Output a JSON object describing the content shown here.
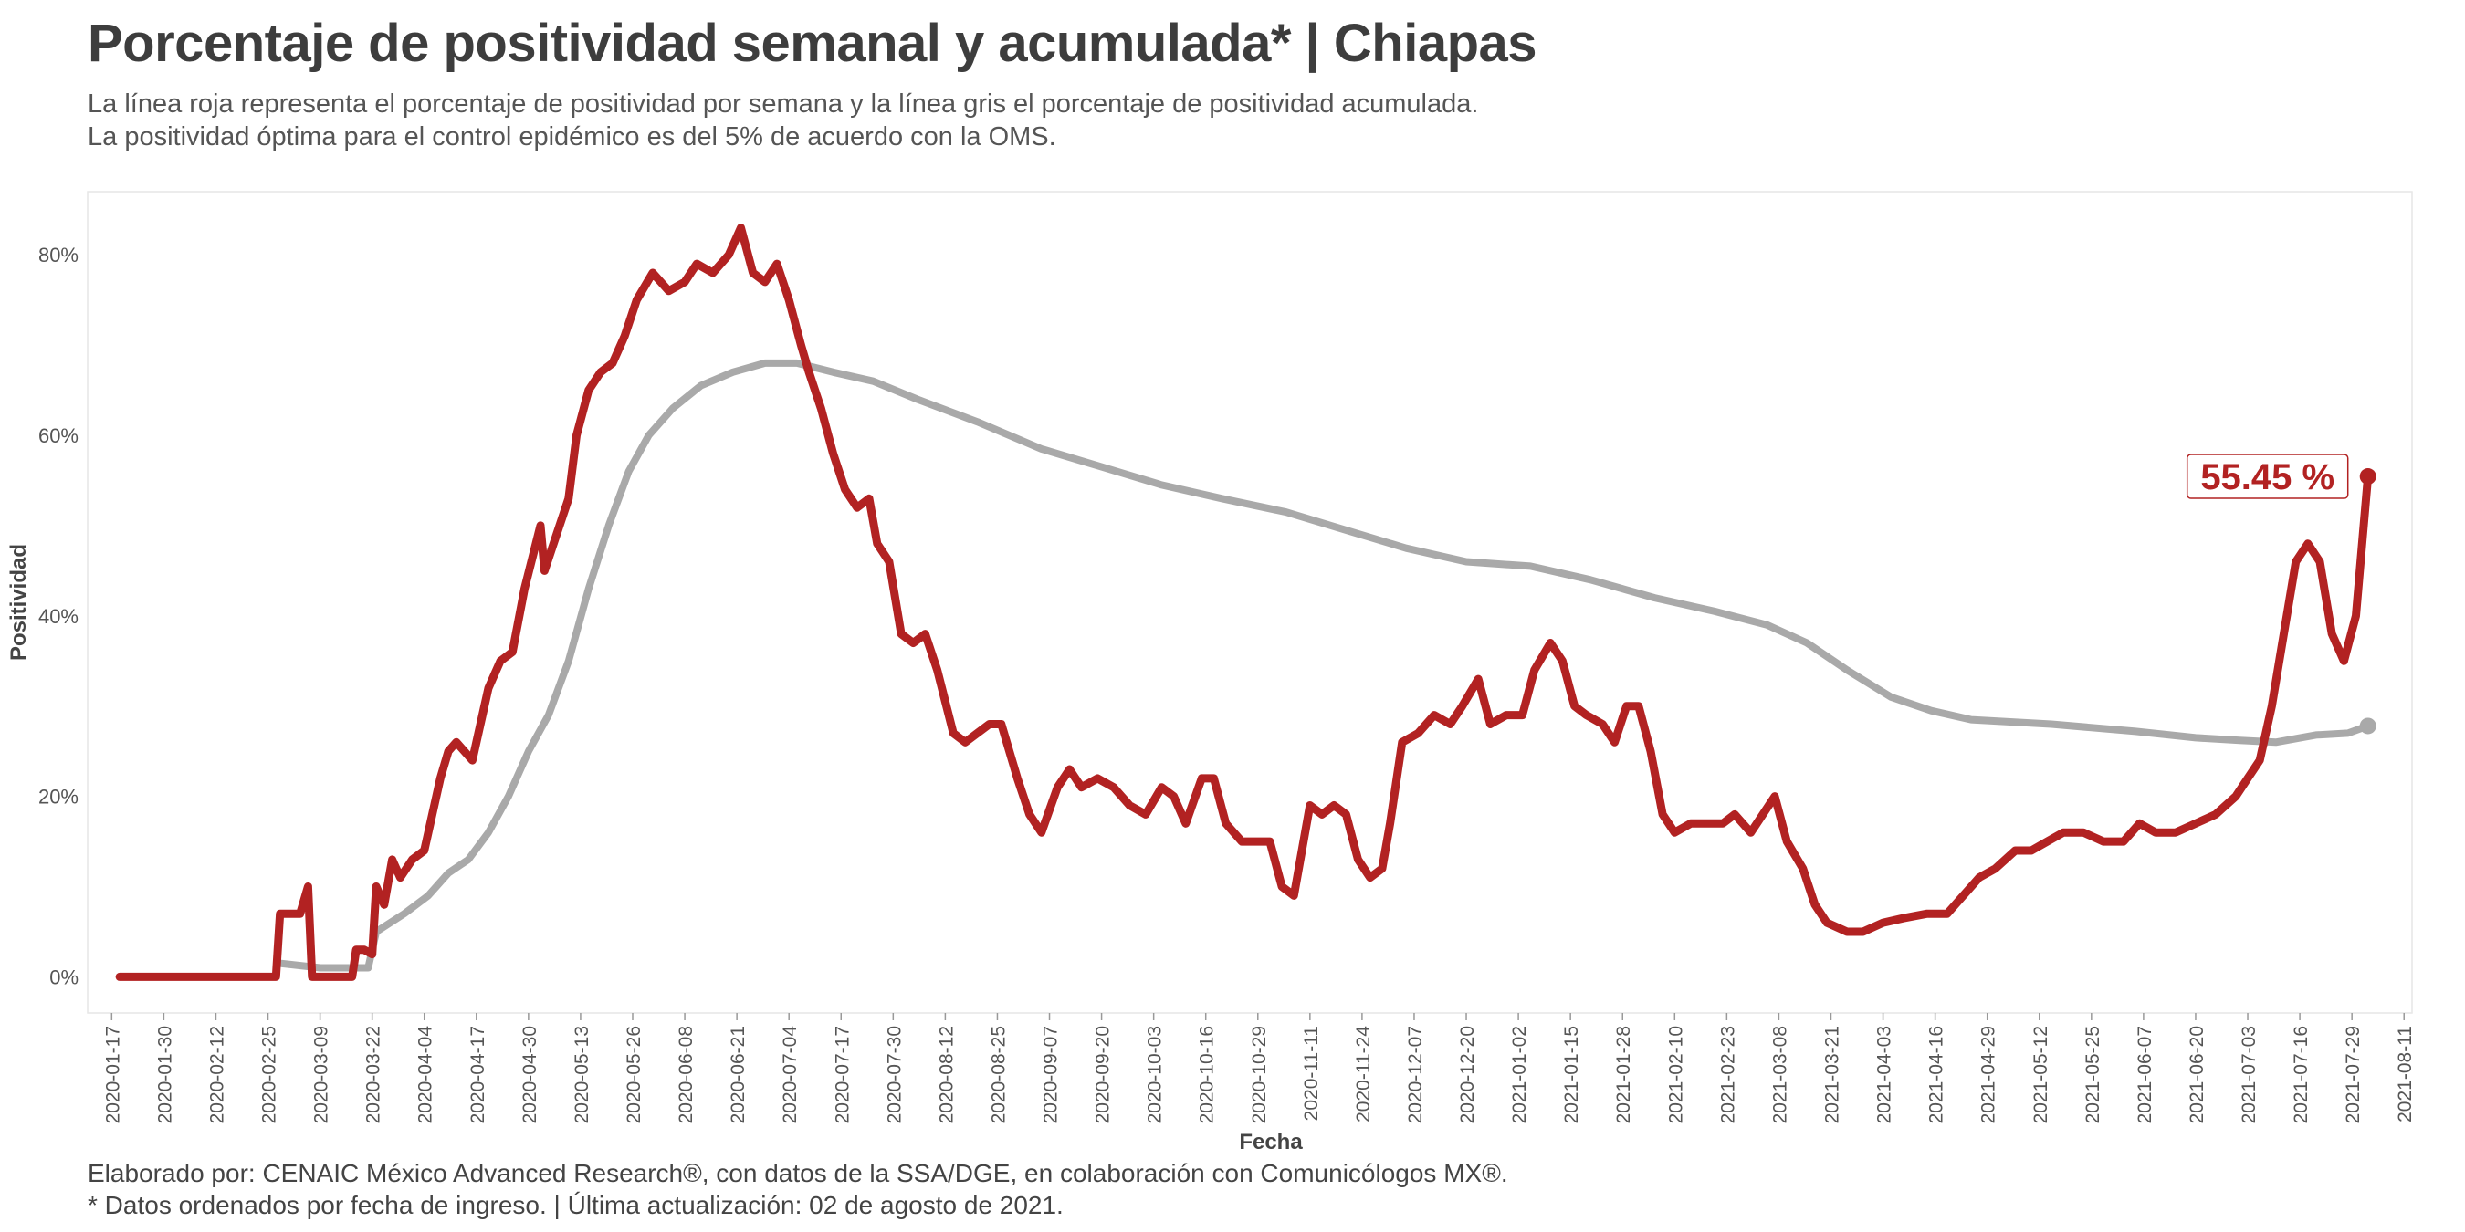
{
  "header": {
    "title": "Porcentaje de positividad semanal y acumulada* | Chiapas",
    "subtitle_line1": "La línea roja representa el porcentaje de positividad por semana y la línea gris el porcentaje de positividad acumulada.",
    "subtitle_line2": "La positividad óptima para el control epidémico es del 5% de acuerdo con la OMS."
  },
  "caption": {
    "line1": "Elaborado por: CENAIC México Advanced Research®, con datos de la SSA/DGE, en colaboración con Comunicólogos MX®.",
    "line2": "* Datos ordenados por fecha de ingreso. | Última actualización: 02 de agosto de 2021."
  },
  "chart_data": {
    "type": "line",
    "xlabel": "Fecha",
    "ylabel": "Positividad",
    "x_axis_type": "date",
    "xlim": [
      "2020-01-11",
      "2021-08-13"
    ],
    "ylim": [
      -4,
      87
    ],
    "y_ticks": [
      0,
      20,
      40,
      60,
      80
    ],
    "y_tick_labels": [
      "0%",
      "20%",
      "40%",
      "60%",
      "80%"
    ],
    "x_ticks": [
      "2020-01-17",
      "2020-01-30",
      "2020-02-12",
      "2020-02-25",
      "2020-03-09",
      "2020-03-22",
      "2020-04-04",
      "2020-04-17",
      "2020-04-30",
      "2020-05-13",
      "2020-05-26",
      "2020-06-08",
      "2020-06-21",
      "2020-07-04",
      "2020-07-17",
      "2020-07-30",
      "2020-08-12",
      "2020-08-25",
      "2020-09-07",
      "2020-09-20",
      "2020-10-03",
      "2020-10-16",
      "2020-10-29",
      "2020-11-11",
      "2020-11-24",
      "2020-12-07",
      "2020-12-20",
      "2021-01-02",
      "2021-01-15",
      "2021-01-28",
      "2021-02-10",
      "2021-02-23",
      "2021-03-08",
      "2021-03-21",
      "2021-04-03",
      "2021-04-16",
      "2021-04-29",
      "2021-05-12",
      "2021-05-25",
      "2021-06-07",
      "2021-06-20",
      "2021-07-03",
      "2021-07-16",
      "2021-07-29",
      "2021-08-11"
    ],
    "grid": false,
    "annotation": {
      "text": "55.45 %",
      "x": "2021-08-02",
      "y": 55.45,
      "color": "#b22222"
    },
    "series": [
      {
        "color": "#b22222",
        "points": [
          [
            "2020-01-19",
            0
          ],
          [
            "2020-02-27",
            0
          ],
          [
            "2020-02-28",
            7
          ],
          [
            "2020-03-04",
            7
          ],
          [
            "2020-03-06",
            10
          ],
          [
            "2020-03-07",
            0
          ],
          [
            "2020-03-17",
            0
          ],
          [
            "2020-03-18",
            3
          ],
          [
            "2020-03-20",
            3
          ],
          [
            "2020-03-22",
            2.5
          ],
          [
            "2020-03-23",
            10
          ],
          [
            "2020-03-25",
            8
          ],
          [
            "2020-03-27",
            13
          ],
          [
            "2020-03-29",
            11
          ],
          [
            "2020-04-01",
            13
          ],
          [
            "2020-04-04",
            14
          ],
          [
            "2020-04-08",
            22
          ],
          [
            "2020-04-10",
            25
          ],
          [
            "2020-04-12",
            26
          ],
          [
            "2020-04-16",
            24
          ],
          [
            "2020-04-18",
            28
          ],
          [
            "2020-04-20",
            32
          ],
          [
            "2020-04-23",
            35
          ],
          [
            "2020-04-26",
            36
          ],
          [
            "2020-04-29",
            43
          ],
          [
            "2020-05-03",
            50
          ],
          [
            "2020-05-04",
            45
          ],
          [
            "2020-05-07",
            49
          ],
          [
            "2020-05-10",
            53
          ],
          [
            "2020-05-12",
            60
          ],
          [
            "2020-05-15",
            65
          ],
          [
            "2020-05-18",
            67
          ],
          [
            "2020-05-21",
            68
          ],
          [
            "2020-05-24",
            71
          ],
          [
            "2020-05-27",
            75
          ],
          [
            "2020-05-31",
            78
          ],
          [
            "2020-06-04",
            76
          ],
          [
            "2020-06-08",
            77
          ],
          [
            "2020-06-11",
            79
          ],
          [
            "2020-06-15",
            78
          ],
          [
            "2020-06-19",
            80
          ],
          [
            "2020-06-22",
            83
          ],
          [
            "2020-06-25",
            78
          ],
          [
            "2020-06-28",
            77
          ],
          [
            "2020-07-01",
            79
          ],
          [
            "2020-07-04",
            75
          ],
          [
            "2020-07-07",
            70
          ],
          [
            "2020-07-09",
            67
          ],
          [
            "2020-07-12",
            63
          ],
          [
            "2020-07-15",
            58
          ],
          [
            "2020-07-18",
            54
          ],
          [
            "2020-07-21",
            52
          ],
          [
            "2020-07-24",
            53
          ],
          [
            "2020-07-26",
            48
          ],
          [
            "2020-07-29",
            46
          ],
          [
            "2020-08-01",
            38
          ],
          [
            "2020-08-04",
            37
          ],
          [
            "2020-08-07",
            38
          ],
          [
            "2020-08-10",
            34
          ],
          [
            "2020-08-14",
            27
          ],
          [
            "2020-08-17",
            26
          ],
          [
            "2020-08-20",
            27
          ],
          [
            "2020-08-23",
            28
          ],
          [
            "2020-08-26",
            28
          ],
          [
            "2020-08-30",
            22
          ],
          [
            "2020-09-02",
            18
          ],
          [
            "2020-09-05",
            16
          ],
          [
            "2020-09-09",
            21
          ],
          [
            "2020-09-12",
            23
          ],
          [
            "2020-09-15",
            21
          ],
          [
            "2020-09-19",
            22
          ],
          [
            "2020-09-23",
            21
          ],
          [
            "2020-09-27",
            19
          ],
          [
            "2020-10-01",
            18
          ],
          [
            "2020-10-05",
            21
          ],
          [
            "2020-10-08",
            20
          ],
          [
            "2020-10-11",
            17
          ],
          [
            "2020-10-15",
            22
          ],
          [
            "2020-10-18",
            22
          ],
          [
            "2020-10-21",
            17
          ],
          [
            "2020-10-25",
            15
          ],
          [
            "2020-10-29",
            15
          ],
          [
            "2020-11-01",
            15
          ],
          [
            "2020-11-04",
            10
          ],
          [
            "2020-11-07",
            9
          ],
          [
            "2020-11-11",
            19
          ],
          [
            "2020-11-14",
            18
          ],
          [
            "2020-11-17",
            19
          ],
          [
            "2020-11-20",
            18
          ],
          [
            "2020-11-23",
            13
          ],
          [
            "2020-11-26",
            11
          ],
          [
            "2020-11-29",
            12
          ],
          [
            "2020-12-01",
            17
          ],
          [
            "2020-12-04",
            26
          ],
          [
            "2020-12-08",
            27
          ],
          [
            "2020-12-12",
            29
          ],
          [
            "2020-12-16",
            28
          ],
          [
            "2020-12-19",
            30
          ],
          [
            "2020-12-23",
            33
          ],
          [
            "2020-12-26",
            28
          ],
          [
            "2020-12-30",
            29
          ],
          [
            "2021-01-03",
            29
          ],
          [
            "2021-01-06",
            34
          ],
          [
            "2021-01-10",
            37
          ],
          [
            "2021-01-13",
            35
          ],
          [
            "2021-01-16",
            30
          ],
          [
            "2021-01-19",
            29
          ],
          [
            "2021-01-23",
            28
          ],
          [
            "2021-01-26",
            26
          ],
          [
            "2021-01-29",
            30
          ],
          [
            "2021-02-01",
            30
          ],
          [
            "2021-02-04",
            25
          ],
          [
            "2021-02-07",
            18
          ],
          [
            "2021-02-10",
            16
          ],
          [
            "2021-02-14",
            17
          ],
          [
            "2021-02-18",
            17
          ],
          [
            "2021-02-22",
            17
          ],
          [
            "2021-02-25",
            18
          ],
          [
            "2021-03-01",
            16
          ],
          [
            "2021-03-04",
            18
          ],
          [
            "2021-03-07",
            20
          ],
          [
            "2021-03-10",
            15
          ],
          [
            "2021-03-14",
            12
          ],
          [
            "2021-03-17",
            8
          ],
          [
            "2021-03-20",
            6
          ],
          [
            "2021-03-25",
            5
          ],
          [
            "2021-03-29",
            5
          ],
          [
            "2021-04-03",
            6
          ],
          [
            "2021-04-08",
            6.5
          ],
          [
            "2021-04-14",
            7
          ],
          [
            "2021-04-19",
            7
          ],
          [
            "2021-04-23",
            9
          ],
          [
            "2021-04-27",
            11
          ],
          [
            "2021-05-01",
            12
          ],
          [
            "2021-05-06",
            14
          ],
          [
            "2021-05-10",
            14
          ],
          [
            "2021-05-14",
            15
          ],
          [
            "2021-05-18",
            16
          ],
          [
            "2021-05-23",
            16
          ],
          [
            "2021-05-28",
            15
          ],
          [
            "2021-06-02",
            15
          ],
          [
            "2021-06-06",
            17
          ],
          [
            "2021-06-10",
            16
          ],
          [
            "2021-06-15",
            16
          ],
          [
            "2021-06-20",
            17
          ],
          [
            "2021-06-25",
            18
          ],
          [
            "2021-06-30",
            20
          ],
          [
            "2021-07-03",
            22
          ],
          [
            "2021-07-06",
            24
          ],
          [
            "2021-07-09",
            30
          ],
          [
            "2021-07-12",
            38
          ],
          [
            "2021-07-15",
            46
          ],
          [
            "2021-07-18",
            48
          ],
          [
            "2021-07-21",
            46
          ],
          [
            "2021-07-24",
            38
          ],
          [
            "2021-07-27",
            35
          ],
          [
            "2021-07-30",
            40
          ],
          [
            "2021-08-02",
            55.45
          ]
        ]
      },
      {
        "color": "#a9a9a9",
        "points": [
          [
            "2020-02-28",
            1.5
          ],
          [
            "2020-03-09",
            1
          ],
          [
            "2020-03-21",
            1
          ],
          [
            "2020-03-23",
            5
          ],
          [
            "2020-03-30",
            7
          ],
          [
            "2020-04-05",
            9
          ],
          [
            "2020-04-10",
            11.5
          ],
          [
            "2020-04-15",
            13
          ],
          [
            "2020-04-20",
            16
          ],
          [
            "2020-04-25",
            20
          ],
          [
            "2020-04-30",
            25
          ],
          [
            "2020-05-05",
            29
          ],
          [
            "2020-05-10",
            35
          ],
          [
            "2020-05-15",
            43
          ],
          [
            "2020-05-20",
            50
          ],
          [
            "2020-05-25",
            56
          ],
          [
            "2020-05-30",
            60
          ],
          [
            "2020-06-05",
            63
          ],
          [
            "2020-06-12",
            65.5
          ],
          [
            "2020-06-20",
            67
          ],
          [
            "2020-06-28",
            68
          ],
          [
            "2020-07-06",
            68
          ],
          [
            "2020-07-15",
            67
          ],
          [
            "2020-07-25",
            66
          ],
          [
            "2020-08-05",
            64
          ],
          [
            "2020-08-20",
            61.5
          ],
          [
            "2020-09-05",
            58.5
          ],
          [
            "2020-09-20",
            56.5
          ],
          [
            "2020-10-05",
            54.5
          ],
          [
            "2020-10-20",
            53
          ],
          [
            "2020-11-05",
            51.5
          ],
          [
            "2020-11-20",
            49.5
          ],
          [
            "2020-12-05",
            47.5
          ],
          [
            "2020-12-20",
            46
          ],
          [
            "2021-01-05",
            45.5
          ],
          [
            "2021-01-20",
            44
          ],
          [
            "2021-02-05",
            42
          ],
          [
            "2021-02-20",
            40.5
          ],
          [
            "2021-03-05",
            39
          ],
          [
            "2021-03-15",
            37
          ],
          [
            "2021-03-25",
            34
          ],
          [
            "2021-04-05",
            31
          ],
          [
            "2021-04-15",
            29.5
          ],
          [
            "2021-04-25",
            28.5
          ],
          [
            "2021-05-15",
            28
          ],
          [
            "2021-06-05",
            27.2
          ],
          [
            "2021-06-20",
            26.5
          ],
          [
            "2021-07-01",
            26.2
          ],
          [
            "2021-07-10",
            26
          ],
          [
            "2021-07-20",
            26.8
          ],
          [
            "2021-07-28",
            27
          ],
          [
            "2021-08-02",
            27.8
          ]
        ]
      }
    ]
  }
}
